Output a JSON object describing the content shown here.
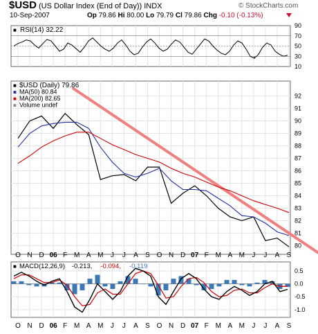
{
  "header": {
    "symbol": "$USD",
    "name": "(US Dollar Index (End of Day)) INDX",
    "watermark": "© StockCharts.com",
    "date": "10-Sep-2007",
    "op_label": "Op",
    "op": "79.86",
    "hi_label": "Hi",
    "hi": "80.00",
    "lo_label": "Lo",
    "lo": "79.79",
    "cl_label": "Cl",
    "cl": "79.86",
    "chg_label": "Chg",
    "chg": "-0.10 (-0.13%)",
    "chg_color": "#c8102e"
  },
  "chart_data": [
    {
      "type": "line",
      "panel": "rsi",
      "legend": [
        "RSI(14) 32.22"
      ],
      "ylim": [
        10,
        90
      ],
      "yticks": [
        10,
        30,
        50,
        70,
        90
      ],
      "reference_lines": [
        30,
        50,
        70
      ],
      "series": [
        {
          "name": "RSI(14)",
          "color": "#000000",
          "values": [
            50,
            55,
            58,
            62,
            60,
            52,
            46,
            55,
            63,
            60,
            50,
            40,
            44,
            56,
            52,
            45,
            38,
            48,
            60,
            66,
            58,
            50,
            44,
            40,
            46,
            56,
            62,
            52,
            40,
            33,
            36,
            48,
            58,
            64,
            56,
            46,
            40,
            44,
            54,
            62,
            58,
            48,
            38,
            34,
            44,
            54,
            64,
            60,
            50,
            42,
            36,
            33,
            40,
            52,
            60,
            56,
            44,
            30,
            26,
            34,
            48,
            56,
            52,
            40,
            34,
            30,
            32
          ]
        }
      ]
    },
    {
      "type": "line",
      "panel": "price",
      "legend": [
        "$USD (Daily) 79.86",
        "MA(50) 80.84",
        "MA(200) 82.65",
        "Volume undef"
      ],
      "legend_colors": [
        "#000000",
        "#1f2fa0",
        "#cc0000",
        "#888888"
      ],
      "ylim": [
        79.3,
        93.2
      ],
      "yticks": [
        80,
        81,
        82,
        83,
        84,
        85,
        86,
        87,
        88,
        89,
        90,
        91,
        92
      ],
      "x": [
        "2005-10",
        "2005-11",
        "2005-12",
        "2006-01",
        "2006-02",
        "2006-03",
        "2006-04",
        "2006-05",
        "2006-06",
        "2006-07",
        "2006-08",
        "2006-09",
        "2006-10",
        "2006-11",
        "2006-12",
        "2007-01",
        "2007-02",
        "2007-03",
        "2007-04",
        "2007-05",
        "2007-06",
        "2007-07",
        "2007-08",
        "2007-09"
      ],
      "series": [
        {
          "name": "$USD (Daily)",
          "color": "#000000",
          "values": [
            88.6,
            90.0,
            90.4,
            89.4,
            90.6,
            89.7,
            88.9,
            85.3,
            85.6,
            85.7,
            85.2,
            86.3,
            86.3,
            83.4,
            84.2,
            84.8,
            84.0,
            83.0,
            82.3,
            82.0,
            82.3,
            80.4,
            80.6,
            79.9
          ]
        },
        {
          "name": "MA(50)",
          "color": "#1f2fa0",
          "values": [
            87.9,
            89.0,
            89.6,
            89.8,
            89.9,
            89.9,
            89.4,
            87.9,
            86.7,
            85.8,
            85.5,
            85.8,
            86.2,
            85.2,
            84.5,
            84.5,
            84.4,
            83.8,
            83.2,
            82.4,
            82.3,
            81.8,
            81.1,
            80.8
          ]
        },
        {
          "name": "MA(200)",
          "color": "#cc0000",
          "values": [
            86.6,
            87.2,
            87.9,
            88.4,
            88.8,
            89.1,
            89.1,
            88.6,
            88.1,
            87.7,
            87.3,
            87.0,
            86.7,
            86.2,
            85.8,
            85.5,
            85.1,
            84.7,
            84.4,
            84.0,
            83.6,
            83.3,
            83.0,
            82.65
          ]
        }
      ],
      "trendline": {
        "color": "#f08080",
        "from": [
          "2006-03",
          92.6
        ],
        "to": [
          "2007-09",
          81.0
        ]
      }
    },
    {
      "type": "line",
      "panel": "macd",
      "legend": [
        "MACD(12,26,9)",
        "-0.213",
        "-0.094",
        "-0.119"
      ],
      "legend_colors": [
        "#000000",
        "#000000",
        "#cc0000",
        "#3a78b8"
      ],
      "ylim": [
        -1.3,
        0.85
      ],
      "yticks": [
        0.5,
        0.0,
        -0.5,
        -1.0
      ],
      "series": [
        {
          "name": "MACD",
          "color": "#000000",
          "values": [
            0.3,
            0.45,
            0.3,
            0.1,
            -0.05,
            0.1,
            0.2,
            -0.3,
            -0.9,
            -1.1,
            -0.6,
            0.0,
            -0.3,
            -0.6,
            -0.3,
            0.3,
            0.6,
            0.5,
            0.3,
            -0.5,
            -0.8,
            -0.3,
            0.2,
            0.4,
            0.2,
            -0.2,
            -0.5,
            -0.6,
            -0.3,
            -0.1,
            -0.25,
            -0.45,
            -0.3,
            0.0,
            0.1,
            -0.3,
            -0.213
          ]
        },
        {
          "name": "Signal",
          "color": "#cc0000",
          "values": [
            0.2,
            0.35,
            0.35,
            0.2,
            0.05,
            0.05,
            0.15,
            -0.05,
            -0.5,
            -0.85,
            -0.8,
            -0.35,
            -0.2,
            -0.4,
            -0.4,
            0.0,
            0.4,
            0.5,
            0.4,
            -0.05,
            -0.55,
            -0.5,
            -0.1,
            0.2,
            0.25,
            0.05,
            -0.3,
            -0.5,
            -0.45,
            -0.25,
            -0.2,
            -0.35,
            -0.35,
            -0.15,
            0.0,
            -0.1,
            -0.094
          ]
        },
        {
          "name": "Histogram",
          "color": "#3a78b8",
          "style": "histogram",
          "values": [
            0.1,
            0.1,
            -0.05,
            -0.1,
            -0.1,
            0.05,
            0.05,
            -0.25,
            -0.4,
            -0.25,
            0.2,
            0.35,
            -0.1,
            -0.2,
            0.1,
            0.3,
            0.2,
            0.0,
            -0.1,
            -0.45,
            -0.25,
            0.2,
            0.3,
            0.2,
            -0.05,
            -0.25,
            -0.2,
            -0.1,
            0.15,
            0.15,
            -0.05,
            -0.1,
            0.05,
            0.15,
            0.1,
            -0.2,
            -0.119
          ]
        }
      ]
    }
  ],
  "x_axis": {
    "labels": [
      "O",
      "N",
      "D",
      "06",
      "F",
      "M",
      "A",
      "M",
      "J",
      "J",
      "A",
      "S",
      "O",
      "N",
      "D",
      "07",
      "F",
      "M",
      "A",
      "M",
      "J",
      "J",
      "A",
      "S"
    ],
    "bold_labels": [
      "06",
      "07"
    ]
  }
}
